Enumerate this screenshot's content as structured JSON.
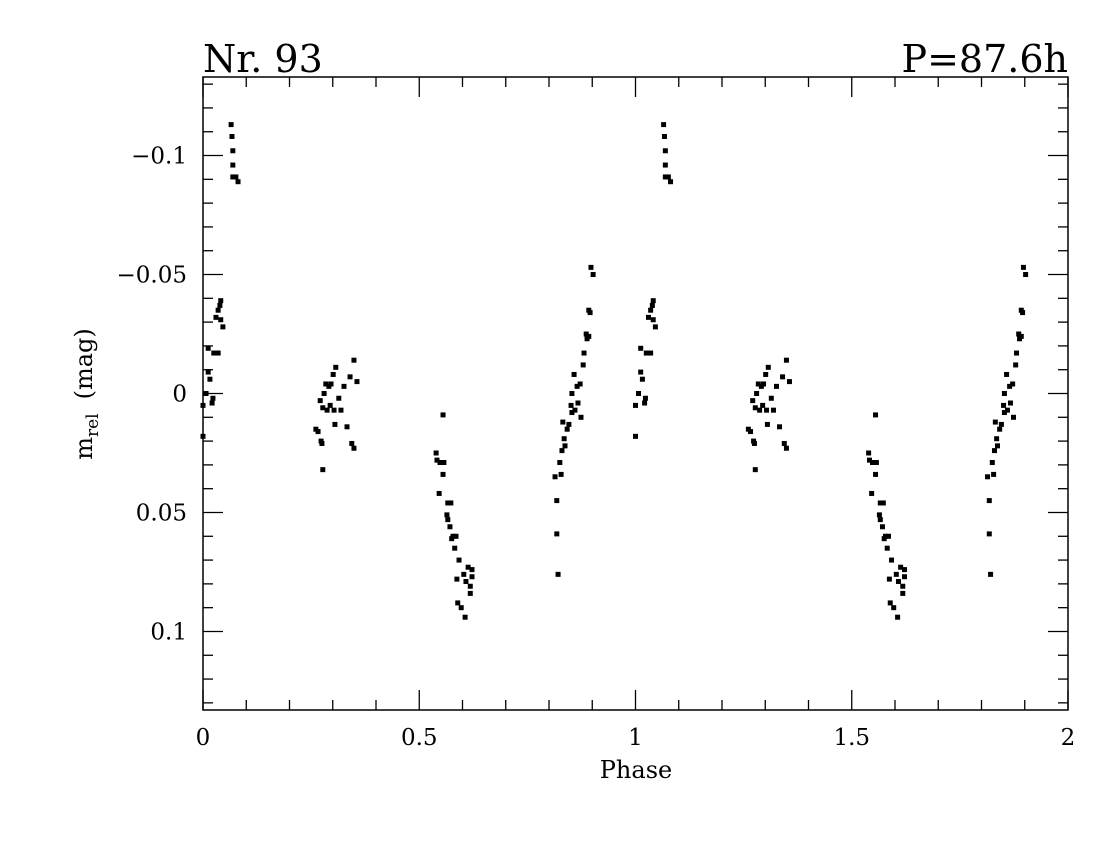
{
  "chart_data": {
    "type": "scatter",
    "title": "Nr. 93",
    "subtitle": "P=87.6h",
    "xlabel": "Phase",
    "ylabel": "m",
    "ylabel_sub": "rel",
    "ylabel_unit": "(mag)",
    "color": "#000000",
    "xlim": [
      0,
      2
    ],
    "ylim": [
      0.133,
      -0.133
    ],
    "xticks": [
      0,
      0.5,
      1,
      1.5,
      2
    ],
    "yticks": [
      {
        "value": -0.1,
        "label": "−0.1"
      },
      {
        "value": -0.05,
        "label": "−0.05"
      },
      0,
      0.05,
      0.1
    ],
    "xminorticks": [
      0.1,
      0.2,
      0.3,
      0.4,
      0.6,
      0.7,
      0.8,
      0.9,
      1.1,
      1.2,
      1.3,
      1.4,
      1.6,
      1.7,
      1.8,
      1.9
    ],
    "yminorticks": [
      -0.13,
      -0.12,
      -0.11,
      -0.09,
      -0.08,
      -0.07,
      -0.06,
      -0.04,
      -0.03,
      -0.02,
      -0.01,
      0.01,
      0.02,
      0.03,
      0.04,
      0.06,
      0.07,
      0.08,
      0.09,
      0.11,
      0.12,
      0.13
    ],
    "x": [
      0,
      0,
      0.007,
      0.012,
      0.012,
      0.016,
      0.021,
      0.023,
      0.025,
      0.03,
      0.035,
      0.035,
      0.039,
      0.041,
      0.041,
      0.046,
      0.065,
      0.067,
      0.069,
      0.069,
      0.069,
      0.076,
      0.081,
      0.261,
      0.266,
      0.271,
      0.273,
      0.275,
      0.277,
      0.277,
      0.28,
      0.284,
      0.287,
      0.291,
      0.294,
      0.296,
      0.301,
      0.303,
      0.305,
      0.307,
      0.314,
      0.319,
      0.326,
      0.333,
      0.34,
      0.344,
      0.349,
      0.349,
      0.356,
      0.539,
      0.541,
      0.546,
      0.548,
      0.555,
      0.555,
      0.557,
      0.564,
      0.566,
      0.566,
      0.571,
      0.573,
      0.575,
      0.578,
      0.582,
      0.585,
      0.587,
      0.589,
      0.592,
      0.597,
      0.603,
      0.606,
      0.608,
      0.613,
      0.618,
      0.618,
      0.622,
      0.622,
      0.814,
      0.818,
      0.818,
      0.821,
      0.825,
      0.828,
      0.83,
      0.832,
      0.835,
      0.837,
      0.842,
      0.846,
      0.851,
      0.853,
      0.853,
      0.858,
      0.86,
      0.865,
      0.867,
      0.872,
      0.874,
      0.879,
      0.881,
      0.886,
      0.888,
      0.892,
      0.895,
      0.897,
      0.902,
      0.892,
      1,
      1,
      1.007,
      1.012,
      1.012,
      1.016,
      1.021,
      1.023,
      1.025,
      1.03,
      1.035,
      1.035,
      1.039,
      1.041,
      1.041,
      1.046,
      1.065,
      1.067,
      1.069,
      1.069,
      1.069,
      1.076,
      1.081,
      1.261,
      1.266,
      1.271,
      1.273,
      1.275,
      1.277,
      1.277,
      1.28,
      1.284,
      1.287,
      1.291,
      1.294,
      1.296,
      1.301,
      1.303,
      1.305,
      1.307,
      1.314,
      1.319,
      1.326,
      1.333,
      1.34,
      1.344,
      1.349,
      1.349,
      1.356,
      1.539,
      1.541,
      1.546,
      1.548,
      1.555,
      1.555,
      1.557,
      1.564,
      1.566,
      1.566,
      1.571,
      1.573,
      1.575,
      1.578,
      1.582,
      1.585,
      1.587,
      1.589,
      1.592,
      1.597,
      1.603,
      1.606,
      1.608,
      1.613,
      1.618,
      1.618,
      1.622,
      1.622,
      1.814,
      1.818,
      1.818,
      1.821,
      1.825,
      1.828,
      1.83,
      1.832,
      1.835,
      1.837,
      1.842,
      1.846,
      1.851,
      1.853,
      1.853,
      1.858,
      1.86,
      1.865,
      1.867,
      1.872,
      1.874,
      1.879,
      1.881,
      1.886,
      1.888,
      1.892,
      1.895,
      1.897,
      1.902,
      1.892
    ],
    "values": [
      0.018,
      0.005,
      0,
      -0.009,
      -0.019,
      -0.006,
      0.004,
      0.002,
      -0.017,
      -0.032,
      -0.035,
      -0.017,
      -0.037,
      -0.039,
      -0.031,
      -0.028,
      -0.113,
      -0.108,
      -0.102,
      -0.096,
      -0.091,
      -0.091,
      -0.089,
      0.015,
      0.016,
      0.003,
      0.02,
      0.021,
      0.032,
      0.006,
      0,
      -0.004,
      0.007,
      -0.003,
      0.005,
      -0.004,
      -0.008,
      0.007,
      0.013,
      -0.011,
      0.002,
      0.007,
      -0.003,
      0.014,
      -0.007,
      0.021,
      0.023,
      -0.014,
      -0.005,
      0.025,
      0.028,
      0.042,
      0.029,
      0.009,
      0.034,
      0.029,
      0.051,
      0.053,
      0.046,
      0.056,
      0.046,
      0.061,
      0.06,
      0.065,
      0.06,
      0.078,
      0.088,
      0.07,
      0.09,
      0.076,
      0.094,
      0.079,
      0.073,
      0.081,
      0.084,
      0.074,
      0.077,
      0.035,
      0.059,
      0.045,
      0.076,
      0.029,
      0.034,
      0.024,
      0.012,
      0.019,
      0.022,
      0.015,
      0.013,
      0.005,
      0,
      0.008,
      -0.008,
      0.007,
      -0.003,
      0.004,
      -0.004,
      0.01,
      -0.012,
      -0.017,
      -0.025,
      -0.023,
      -0.035,
      -0.034,
      -0.053,
      -0.05,
      -0.024,
      0.018,
      0.005,
      0,
      -0.009,
      -0.019,
      -0.006,
      0.004,
      0.002,
      -0.017,
      -0.032,
      -0.035,
      -0.017,
      -0.037,
      -0.039,
      -0.031,
      -0.028,
      -0.113,
      -0.108,
      -0.102,
      -0.096,
      -0.091,
      -0.091,
      -0.089,
      0.015,
      0.016,
      0.003,
      0.02,
      0.021,
      0.032,
      0.006,
      0,
      -0.004,
      0.007,
      -0.003,
      0.005,
      -0.004,
      -0.008,
      0.007,
      0.013,
      -0.011,
      0.002,
      0.007,
      -0.003,
      0.014,
      -0.007,
      0.021,
      0.023,
      -0.014,
      -0.005,
      0.025,
      0.028,
      0.042,
      0.029,
      0.009,
      0.034,
      0.029,
      0.051,
      0.053,
      0.046,
      0.056,
      0.046,
      0.061,
      0.06,
      0.065,
      0.06,
      0.078,
      0.088,
      0.07,
      0.09,
      0.076,
      0.094,
      0.079,
      0.073,
      0.081,
      0.084,
      0.074,
      0.077,
      0.035,
      0.059,
      0.045,
      0.076,
      0.029,
      0.034,
      0.024,
      0.012,
      0.019,
      0.022,
      0.015,
      0.013,
      0.005,
      0,
      0.008,
      -0.008,
      0.007,
      -0.003,
      0.004,
      -0.004,
      0.01,
      -0.012,
      -0.017,
      -0.025,
      -0.023,
      -0.035,
      -0.034,
      -0.053,
      -0.05,
      -0.024
    ]
  }
}
